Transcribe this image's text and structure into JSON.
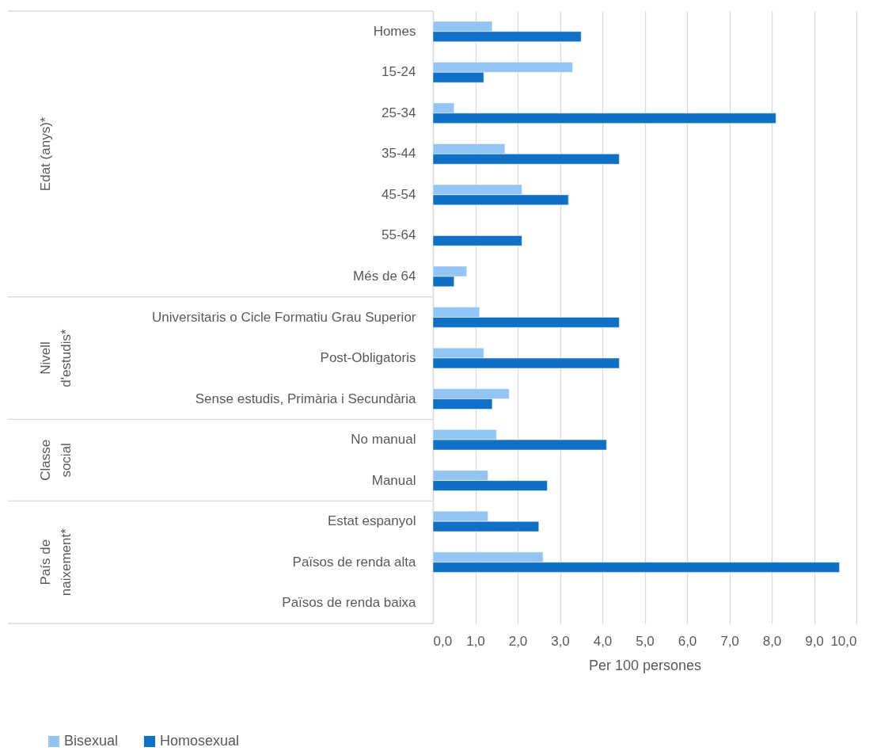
{
  "chart_data": {
    "type": "bar",
    "orientation": "horizontal",
    "categories": [
      "Homes",
      "15-24",
      "25-34",
      "35-44",
      "45-54",
      "55-64",
      "Més de 64",
      "Universitaris o Cicle Formatiu Grau Superior",
      "Post-Obligatoris",
      "Sense estudis, Primària i Secundària",
      "No manual",
      "Manual",
      "Estat espanyol",
      "Països de renda alta",
      "Països de renda baixa"
    ],
    "series": [
      {
        "name": "Bisexual",
        "color": "#92c5f3",
        "values": [
          1.4,
          3.3,
          0.5,
          1.7,
          2.1,
          null,
          0.8,
          1.1,
          1.2,
          1.8,
          1.5,
          1.3,
          1.3,
          2.6,
          null
        ]
      },
      {
        "name": "Homosexual",
        "color": "#1070c6",
        "values": [
          3.5,
          1.2,
          8.1,
          4.4,
          3.2,
          2.1,
          0.5,
          4.4,
          4.4,
          1.4,
          4.1,
          2.7,
          2.5,
          9.6,
          null
        ]
      }
    ],
    "xlabel": "Per 100 persones",
    "xlim": [
      0,
      10
    ],
    "xticks": [
      {
        "value": 0,
        "label": "0,0"
      },
      {
        "value": 1,
        "label": "1,0"
      },
      {
        "value": 2,
        "label": "2,0"
      },
      {
        "value": 3,
        "label": "3,0"
      },
      {
        "value": 4,
        "label": "4,0"
      },
      {
        "value": 5,
        "label": "5,0"
      },
      {
        "value": 6,
        "label": "6,0"
      },
      {
        "value": 7,
        "label": "7,0"
      },
      {
        "value": 8,
        "label": "8,0"
      },
      {
        "value": 9,
        "label": "9,0"
      },
      {
        "value": 10,
        "label": "10,0"
      }
    ],
    "annotations": [
      "Edat (anys)*",
      "Nivell\nd'estudis*",
      "Classe\nsocial",
      "País de\nnaixement*"
    ],
    "grid": "x",
    "legend": "bottom left"
  }
}
